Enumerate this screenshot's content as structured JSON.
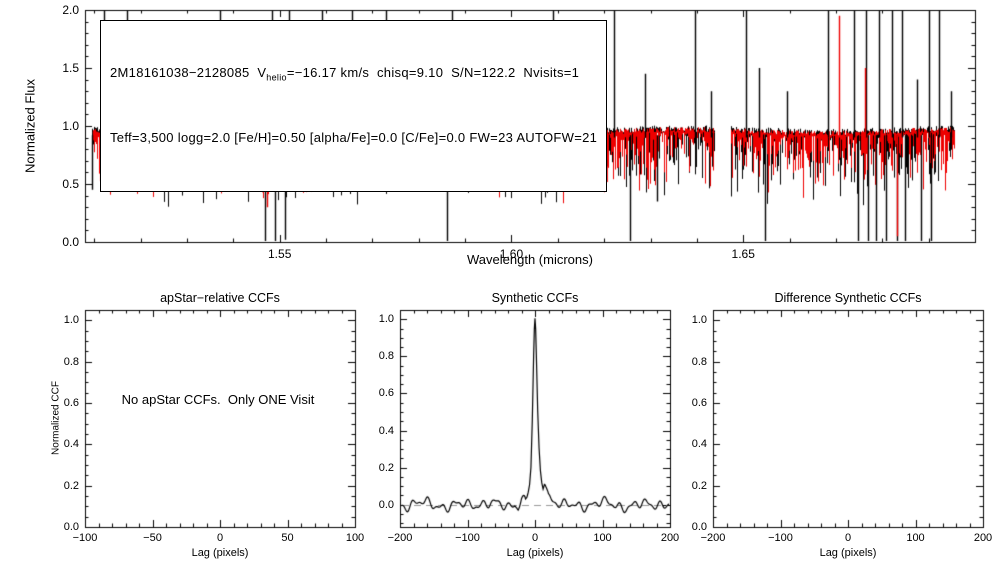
{
  "colors": {
    "background": "#ffffff",
    "axis": "#000000",
    "observed": "#000000",
    "synthetic": "#ee0000",
    "zero_line": "#999999",
    "text": "#000000"
  },
  "top_panel": {
    "ylabel": "Normalized Flux",
    "xlabel": "Wavelength (microns)"
  },
  "annotation": {
    "line1_pre": "2M18161038−2128085  V",
    "line1_sub": "helio",
    "line1_post": "=−16.17 km/s  chisq=9.10  S/N=122.2  Nvisits=1",
    "line2": "Teff=3,500 logg=2.0 [Fe/H]=0.50 [alpha/Fe]=0.0 [C/Fe]=0.0 FW=23 AUTOFW=21"
  },
  "panels": {
    "apstar": {
      "title": "apStar−relative CCFs",
      "ylabel": "Normalized CCF",
      "xlabel": "Lag (pixels)",
      "empty_message": "No apStar CCFs.  Only ONE Visit"
    },
    "synthetic": {
      "title": "Synthetic CCFs",
      "xlabel": "Lag (pixels)"
    },
    "difference": {
      "title": "Difference Synthetic CCFs",
      "xlabel": "Lag (pixels)"
    }
  },
  "chart_data": [
    {
      "id": "visit-spectrum",
      "type": "line",
      "title": "",
      "xlabel": "Wavelength (microns)",
      "ylabel": "Normalized Flux",
      "xlim": [
        1.508,
        1.7
      ],
      "ylim": [
        0.0,
        2.0
      ],
      "xticks": [
        1.55,
        1.6,
        1.65
      ],
      "xminor": 0.01,
      "yticks": [
        0.0,
        0.5,
        1.0,
        1.5,
        2.0
      ],
      "yminor": 0.1,
      "series": [
        {
          "name": "observed visit spectrum",
          "color": "#000000"
        },
        {
          "name": "best-fit synthetic spectrum",
          "color": "#ee0000"
        }
      ],
      "continuum_level": 0.92,
      "typical_noise_band": [
        0.78,
        0.97
      ],
      "detector_segments": [
        [
          1.5095,
          1.5803
        ],
        [
          1.5856,
          1.6437
        ],
        [
          1.6473,
          1.6955
        ]
      ],
      "sky_emission_spikes": [
        [
          1.512,
          2.0
        ],
        [
          1.517,
          2.0
        ],
        [
          1.5197,
          1.5
        ],
        [
          1.5372,
          2.0
        ],
        [
          1.5455,
          1.4
        ],
        [
          1.5484,
          2.0
        ],
        [
          1.5521,
          2.0
        ],
        [
          1.5547,
          1.6
        ],
        [
          1.5591,
          2.0
        ],
        [
          1.5657,
          2.0
        ],
        [
          1.567,
          1.5
        ],
        [
          1.5729,
          2.0
        ],
        [
          1.5784,
          1.4
        ],
        [
          1.5872,
          2.0
        ],
        [
          1.5915,
          1.5
        ],
        [
          1.609,
          2.0
        ],
        [
          1.614,
          1.35
        ],
        [
          1.6222,
          2.0
        ],
        [
          1.6288,
          1.45
        ],
        [
          1.6397,
          2.0
        ],
        [
          1.643,
          1.3
        ],
        [
          1.6507,
          2.0
        ],
        [
          1.6533,
          1.5
        ],
        [
          1.6595,
          1.3
        ],
        [
          1.6682,
          2.0
        ],
        [
          1.6739,
          2.0
        ],
        [
          1.6765,
          2.0
        ],
        [
          1.6792,
          2.0
        ],
        [
          1.682,
          2.0
        ],
        [
          1.6842,
          2.0
        ],
        [
          1.6875,
          1.4
        ],
        [
          1.6901,
          2.0
        ],
        [
          1.6923,
          2.0
        ],
        [
          1.6949,
          1.3
        ]
      ],
      "bad_pixel_dips": [
        [
          1.5095,
          0.45
        ],
        [
          1.5468,
          0.0
        ],
        [
          1.549,
          0.0
        ],
        [
          1.5512,
          0.02
        ],
        [
          1.586,
          0.0
        ],
        [
          1.6255,
          0.0
        ],
        [
          1.6314,
          0.35
        ],
        [
          1.6546,
          0.0
        ],
        [
          1.6748,
          0.0
        ],
        [
          1.677,
          0.0
        ],
        [
          1.6787,
          0.0
        ],
        [
          1.6809,
          0.0
        ],
        [
          1.6831,
          0.0
        ],
        [
          1.6848,
          0.0
        ],
        [
          1.6884,
          0.0
        ],
        [
          1.6906,
          0.0
        ]
      ],
      "synthetic_spikes_up": [
        [
          1.5385,
          1.3
        ],
        [
          1.6705,
          1.95
        ],
        [
          1.676,
          1.5
        ]
      ],
      "synthetic_dips": [
        [
          1.547,
          0.3
        ],
        [
          1.588,
          0.45
        ],
        [
          1.683,
          0.05
        ]
      ]
    },
    {
      "id": "apstar-relative-ccfs",
      "type": "line",
      "title": "apStar−relative CCFs",
      "xlabel": "Lag (pixels)",
      "ylabel": "Normalized CCF",
      "xlim": [
        -100,
        100
      ],
      "ylim": [
        0.0,
        1.05
      ],
      "xticks": [
        -100,
        -50,
        0,
        50,
        100
      ],
      "xminor": 10,
      "yticks": [
        0.0,
        0.2,
        0.4,
        0.6,
        0.8,
        1.0
      ],
      "yminor": 0.05,
      "series": [],
      "annotation": "No apStar CCFs.  Only ONE Visit"
    },
    {
      "id": "synthetic-ccfs",
      "type": "line",
      "title": "Synthetic CCFs",
      "xlabel": "Lag (pixels)",
      "ylabel": "",
      "xlim": [
        -200,
        200
      ],
      "ylim": [
        -0.12,
        1.05
      ],
      "xticks": [
        -200,
        -100,
        0,
        100,
        200
      ],
      "xminor": 20,
      "yticks": [
        0.0,
        0.2,
        0.4,
        0.6,
        0.8,
        1.0
      ],
      "yminor": 0.05,
      "zero_line_y": 0.0,
      "series": [
        {
          "name": "visit synthetic CCF",
          "color": "#000000",
          "peak_lag": 0,
          "peak_value": 1.0,
          "baseline_noise_amplitude": 0.035,
          "peak_points": [
            [
              -40,
              0.0
            ],
            [
              -30,
              0.02
            ],
            [
              -25,
              0.0
            ],
            [
              -20,
              0.03
            ],
            [
              -15,
              0.02
            ],
            [
              -12,
              0.04
            ],
            [
              -10,
              0.07
            ],
            [
              -8,
              0.11
            ],
            [
              -6,
              0.2
            ],
            [
              -4,
              0.45
            ],
            [
              -2,
              0.8
            ],
            [
              -1,
              0.94
            ],
            [
              0,
              1.0
            ],
            [
              1,
              0.94
            ],
            [
              2,
              0.8
            ],
            [
              4,
              0.5
            ],
            [
              6,
              0.3
            ],
            [
              8,
              0.18
            ],
            [
              10,
              0.12
            ],
            [
              12,
              0.09
            ],
            [
              15,
              0.13
            ],
            [
              18,
              0.08
            ],
            [
              20,
              0.05
            ],
            [
              25,
              0.03
            ],
            [
              30,
              0.02
            ],
            [
              40,
              0.0
            ]
          ]
        }
      ]
    },
    {
      "id": "difference-synthetic-ccfs",
      "type": "line",
      "title": "Difference Synthetic CCFs",
      "xlabel": "Lag (pixels)",
      "ylabel": "",
      "xlim": [
        -200,
        200
      ],
      "ylim": [
        0.0,
        1.05
      ],
      "xticks": [
        -200,
        -100,
        0,
        100,
        200
      ],
      "xminor": 20,
      "yticks": [
        0.0,
        0.2,
        0.4,
        0.6,
        0.8,
        1.0
      ],
      "yminor": 0.05,
      "series": []
    }
  ]
}
